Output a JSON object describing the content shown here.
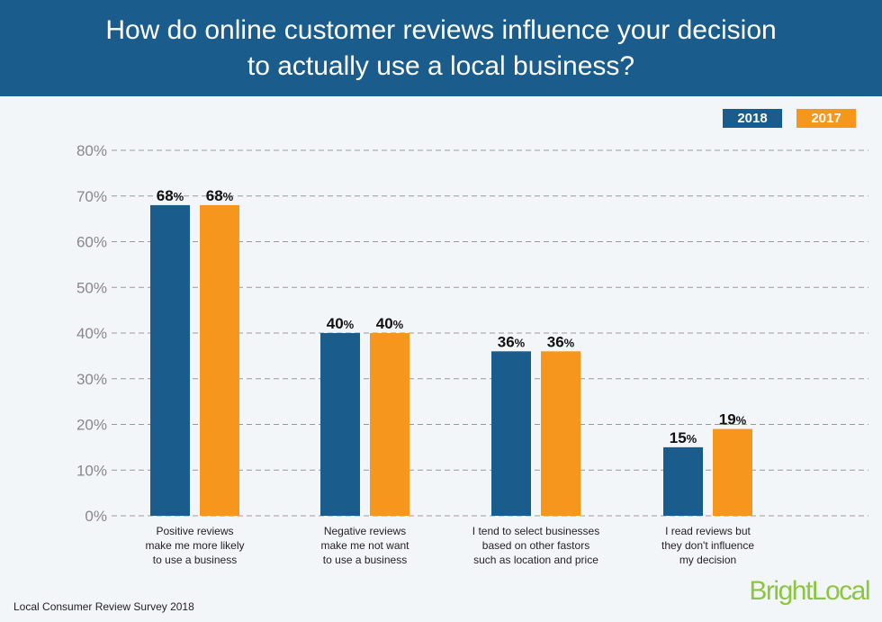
{
  "header": {
    "title": "How do online customer reviews influence your decision to actually use a local business?"
  },
  "footer": {
    "source": "Local Consumer Review Survey 2018",
    "logo": "BrightLocal"
  },
  "colors": {
    "header": "#1a5c8b",
    "s2018": "#1a5c8b",
    "s2017": "#f7961d",
    "logo": "#8cc63e"
  },
  "chart_data": {
    "type": "bar",
    "title": "How do online customer reviews influence your decision to actually use a local business?",
    "categories": [
      [
        "Positive reviews",
        "make me more likely",
        "to use a business"
      ],
      [
        "Negative reviews",
        "make me not want",
        "to use a business"
      ],
      [
        "I tend to select businesses",
        "based on other fastors",
        "such as location and price"
      ],
      [
        "I read reviews but",
        "they don't influence",
        "my decision"
      ]
    ],
    "series": [
      {
        "name": "2018",
        "values": [
          68,
          40,
          36,
          15
        ]
      },
      {
        "name": "2017",
        "values": [
          68,
          40,
          36,
          19
        ]
      }
    ],
    "ylim": [
      0,
      80
    ],
    "yticks": [
      "0%",
      "10%",
      "20%",
      "30%",
      "40%",
      "50%",
      "60%",
      "70%",
      "80%"
    ],
    "grid": true,
    "legend": "top-right"
  }
}
